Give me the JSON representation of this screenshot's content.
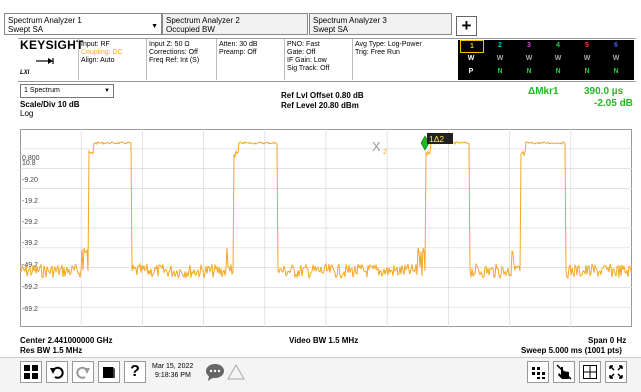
{
  "tabs": [
    {
      "line1": "Spectrum Analyzer 1",
      "line2": "Swept SA",
      "has_arrow": true
    },
    {
      "line1": "Spectrum Analyzer 2",
      "line2": "Occupied BW"
    },
    {
      "line1": "Spectrum Analyzer 3",
      "line2": "Swept SA"
    }
  ],
  "plus_label": "+",
  "brand": "KEYSIGHT",
  "brand_sub": "LXI",
  "info": {
    "input": [
      "Input: RF",
      "Coupling: DC",
      "Align: Auto"
    ],
    "inputz": [
      "Input Z: 50 Ω",
      "Corrections: Off",
      "Freq Ref: Int (S)"
    ],
    "atten": [
      "Atten: 30 dB",
      "Preamp: Off"
    ],
    "pno": [
      "PNO: Fast",
      "Gate: Off",
      "IF Gain: Low",
      "Sig Track: Off"
    ],
    "avg": [
      "Avg Type: Log-Power",
      "Trig: Free Run"
    ]
  },
  "trace_table": {
    "numbers": [
      "1",
      "2",
      "3",
      "4",
      "5",
      "6"
    ],
    "number_colors": [
      "#f2c200",
      "#00c8c8",
      "#e040e0",
      "#20d040",
      "#ff4040",
      "#4060ff"
    ],
    "row_w": [
      "W",
      "W",
      "W",
      "W",
      "W",
      "W"
    ],
    "row_n": [
      "P",
      "N",
      "N",
      "N",
      "N",
      "N"
    ]
  },
  "measurement": {
    "select": "1 Spectrum",
    "scale": "Scale/Div 10 dB",
    "log": "Log",
    "ref_offset": "Ref Lvl Offset 0.80 dB",
    "ref_level": "Ref Level 20.80 dBm",
    "marker_label": "ΔMkr1",
    "marker_x": "390.0 µs",
    "marker_y": "-2.05 dB",
    "marker_tag": "1Δ2",
    "marker_ref_tag": "2"
  },
  "yaxis": [
    "10.8",
    "0.800",
    "-9.20",
    "-19.2",
    "-29.2",
    "-39.2",
    "-49.2",
    "-59.2",
    "-69.2"
  ],
  "footer": {
    "center": "Center 2.441000000 GHz",
    "res_bw": "Res BW 1.5 MHz",
    "video_bw": "Video BW 1.5 MHz",
    "span": "Span 0 Hz",
    "sweep": "Sweep 5.000 ms (1001 pts)"
  },
  "taskbar": {
    "date": "Mar 15, 2022",
    "time": "9:18:36 PM",
    "help": "?"
  },
  "colors": {
    "trace": "#f5a623",
    "grid": "#d8d8d8",
    "marker": "#22b822"
  }
}
